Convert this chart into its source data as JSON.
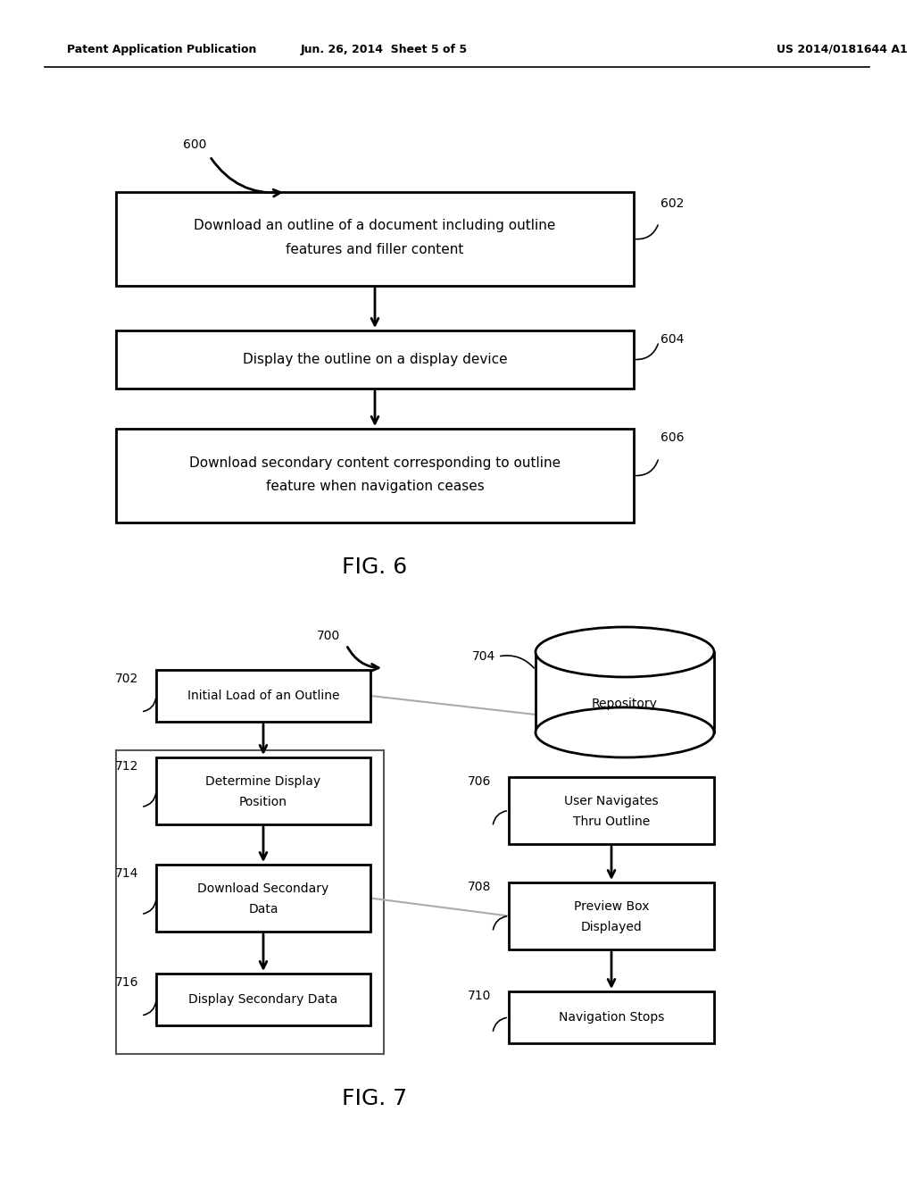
{
  "header_left": "Patent Application Publication",
  "header_center": "Jun. 26, 2014  Sheet 5 of 5",
  "header_right": "US 2014/0181644 A1",
  "fig6_label": "FIG. 6",
  "fig7_label": "FIG. 7",
  "bg_color": "#ffffff",
  "text_color": "#000000"
}
